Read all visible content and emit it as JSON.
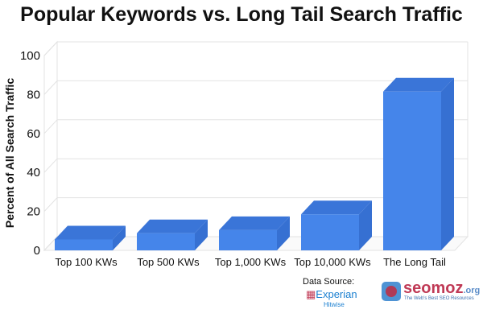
{
  "chart_data": {
    "type": "bar",
    "title": "Popular Keywords vs. Long Tail Search Traffic",
    "xlabel": "",
    "ylabel": "Percent of All Search Traffic",
    "categories": [
      "Top 100 KWs",
      "Top 500 KWs",
      "Top 1,000 KWs",
      "Top 10,000 KWs",
      "The Long Tail"
    ],
    "values": [
      5.6,
      8.8,
      10.4,
      18.5,
      81.5
    ],
    "ylim": [
      0,
      100
    ],
    "yticks": [
      "0",
      "20",
      "40",
      "60",
      "80",
      "100"
    ],
    "grid": true,
    "style": "3d",
    "colors": {
      "bar_front": "#4585ea",
      "bar_top": "#3a75d8",
      "bar_side": "#3670d2",
      "grid": "#e3e3e3"
    }
  },
  "footer": {
    "source_label": "Data Source:",
    "experian_logo": "Experian",
    "hitwise_logo": "Hitwise",
    "seomoz_logo": "seomoz",
    "seomoz_tld": ".org",
    "seomoz_tagline": "The Web's Best SEO Resources"
  }
}
